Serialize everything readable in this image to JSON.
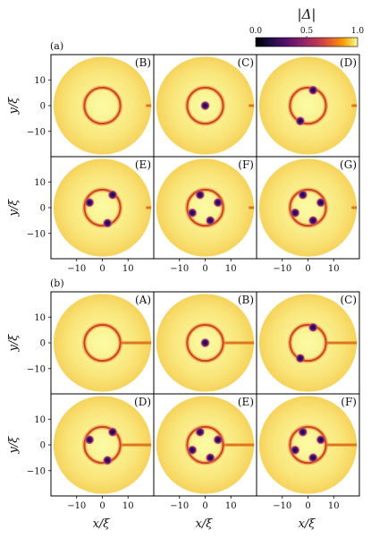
{
  "colorbar": {
    "label": "|Δ|",
    "ticks": [
      "0.0",
      "0.5",
      "1.0"
    ],
    "colormap": "inferno"
  },
  "groups": [
    {
      "tag": "(a)",
      "stub": "right-edge-small",
      "panels": [
        {
          "label": "(B)",
          "vortices": 0
        },
        {
          "label": "(C)",
          "vortices": 1
        },
        {
          "label": "(D)",
          "vortices": 2
        },
        {
          "label": "(E)",
          "vortices": 3
        },
        {
          "label": "(F)",
          "vortices": 4
        },
        {
          "label": "(G)",
          "vortices": 4
        }
      ]
    },
    {
      "tag": "(b)",
      "stub": "ring-to-edge",
      "panels": [
        {
          "label": "(A)",
          "vortices": 0
        },
        {
          "label": "(B)",
          "vortices": 1
        },
        {
          "label": "(C)",
          "vortices": 2
        },
        {
          "label": "(D)",
          "vortices": 3
        },
        {
          "label": "(E)",
          "vortices": 4
        },
        {
          "label": "(F)",
          "vortices": 4
        }
      ]
    }
  ],
  "axes": {
    "ylabel": "y/ξ",
    "xlabel": "x/ξ",
    "yticks": [
      "10",
      "0",
      "−10"
    ],
    "xticks": [
      "−10",
      "0",
      "10"
    ]
  }
}
